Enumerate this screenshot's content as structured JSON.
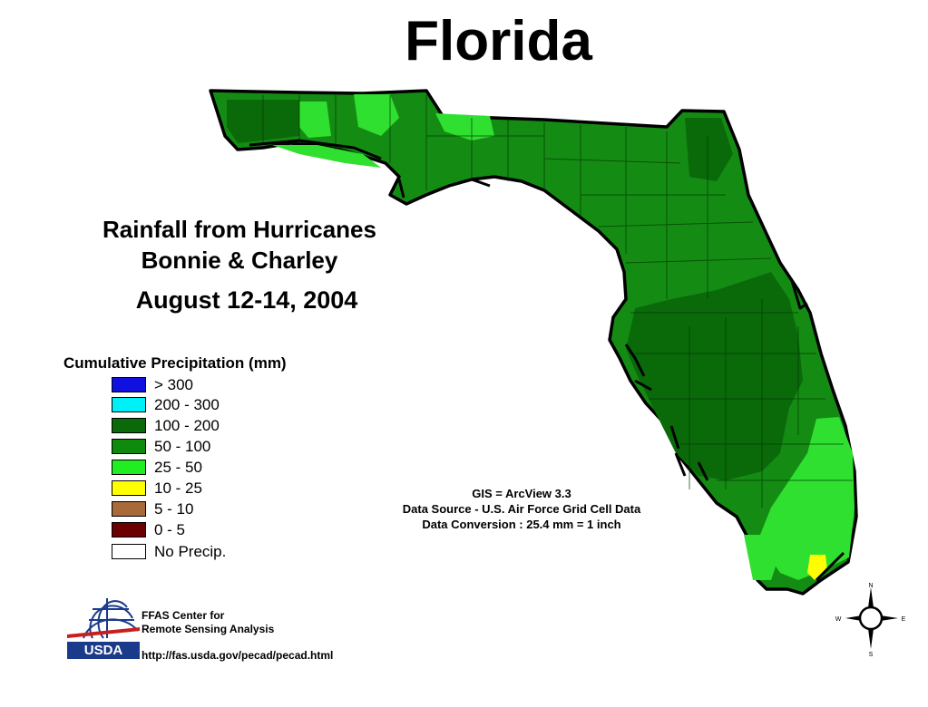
{
  "title": "Florida",
  "subtitle": {
    "line1": "Rainfall from Hurricanes",
    "line2": "Bonnie & Charley",
    "date": "August 12-14, 2004"
  },
  "legend": {
    "title": "Cumulative Precipitation (mm)",
    "items": [
      {
        "label": "> 300",
        "color": "#1010e0"
      },
      {
        "label": "200 - 300",
        "color": "#00f0f8"
      },
      {
        "label": "100 - 200",
        "color": "#0a6a0a"
      },
      {
        "label": "50 - 100",
        "color": "#0f8a0f"
      },
      {
        "label": "25 - 50",
        "color": "#20ee20"
      },
      {
        "label": "10 - 25",
        "color": "#ffff00"
      },
      {
        "label": "5 - 10",
        "color": "#a86a38"
      },
      {
        "label": "0 - 5",
        "color": "#6a0000"
      },
      {
        "label": "No Precip.",
        "color": "#ffffff"
      }
    ]
  },
  "notes": {
    "line1": "GIS = ArcView 3.3",
    "line2": "Data Source - U.S. Air Force Grid Cell Data",
    "line3": "Data Conversion : 25.4 mm = 1 inch"
  },
  "credits": {
    "org_line1": "FFAS Center for",
    "org_line2": "Remote Sensing Analysis",
    "agency": "USDA",
    "url": "http://fas.usda.gov/pecad/pecad.html"
  },
  "compass": {
    "n": "N",
    "s": "S",
    "e": "E",
    "w": "W"
  }
}
